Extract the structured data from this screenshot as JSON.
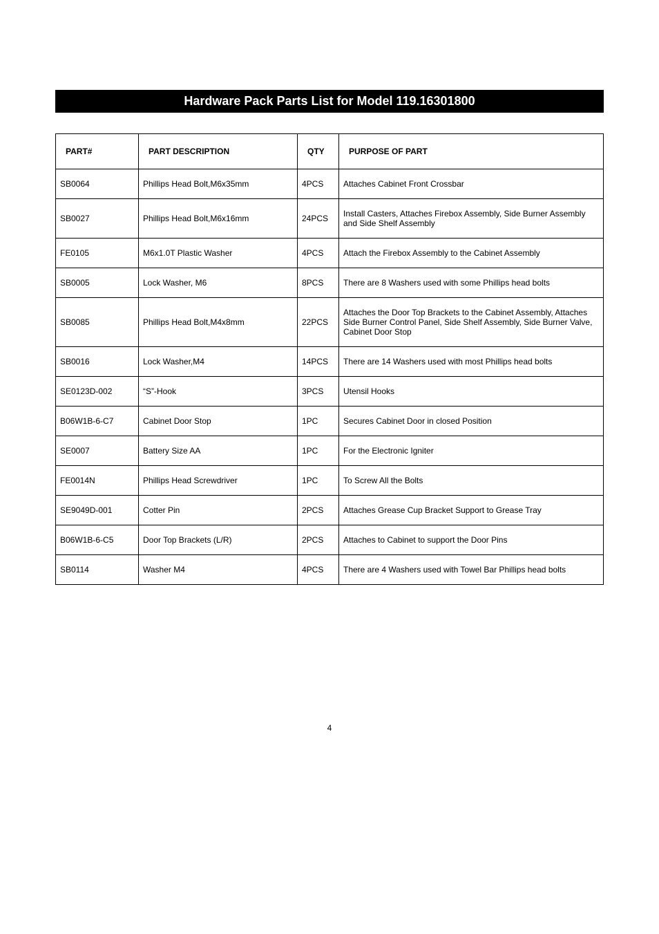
{
  "title": "Hardware Pack Parts List for Model 119.16301800",
  "headers": {
    "part": "PART#",
    "desc": "PART DESCRIPTION",
    "qty": "QTY",
    "purpose": "PURPOSE OF PART"
  },
  "rows": [
    {
      "part": "SB0064",
      "desc": "Phillips Head Bolt,M6x35mm",
      "qty": "4PCS",
      "purpose": "Attaches Cabinet Front Crossbar"
    },
    {
      "part": "SB0027",
      "desc": "Phillips Head Bolt,M6x16mm",
      "qty": "24PCS",
      "purpose": "Install Casters, Attaches Firebox Assembly, Side Burner Assembly and Side Shelf Assembly"
    },
    {
      "part": "FE0105",
      "desc": "M6x1.0T Plastic Washer",
      "qty": "4PCS",
      "purpose": "Attach the Firebox Assembly to the Cabinet Assembly"
    },
    {
      "part": "SB0005",
      "desc": "Lock Washer, M6",
      "qty": "8PCS",
      "purpose": "There are 8 Washers used with some Phillips head bolts"
    },
    {
      "part": "SB0085",
      "desc": "Phillips Head Bolt,M4x8mm",
      "qty": "22PCS",
      "purpose": "Attaches the Door Top Brackets to the Cabinet Assembly, Attaches Side Burner Control Panel, Side Shelf Assembly, Side Burner Valve, Cabinet Door Stop"
    },
    {
      "part": "SB0016",
      "desc": "Lock Washer,M4",
      "qty": "14PCS",
      "purpose": "There are 14 Washers used with most Phillips head bolts"
    },
    {
      "part": "SE0123D-002",
      "desc": "“S”-Hook",
      "qty": "3PCS",
      "purpose": "Utensil Hooks"
    },
    {
      "part": "B06W1B-6-C7",
      "desc": "Cabinet Door Stop",
      "qty": "1PC",
      "purpose": "Secures Cabinet Door in closed Position"
    },
    {
      "part": "SE0007",
      "desc": "Battery Size AA",
      "qty": "1PC",
      "purpose": "For the Electronic Igniter"
    },
    {
      "part": "FE0014N",
      "desc": "Phillips Head Screwdriver",
      "qty": "1PC",
      "purpose": "To Screw All the Bolts"
    },
    {
      "part": "SE9049D-001",
      "desc": "Cotter Pin",
      "qty": "2PCS",
      "purpose": "Attaches Grease Cup Bracket Support to Grease Tray"
    },
    {
      "part": "B06W1B-6-C5",
      "desc": "Door Top Brackets (L/R)",
      "qty": "2PCS",
      "purpose": "Attaches to Cabinet to support the Door Pins"
    },
    {
      "part": "SB0114",
      "desc": "Washer M4",
      "qty": "4PCS",
      "purpose": "There are 4 Washers used with Towel Bar Phillips head bolts"
    }
  ],
  "pageNumber": "4"
}
